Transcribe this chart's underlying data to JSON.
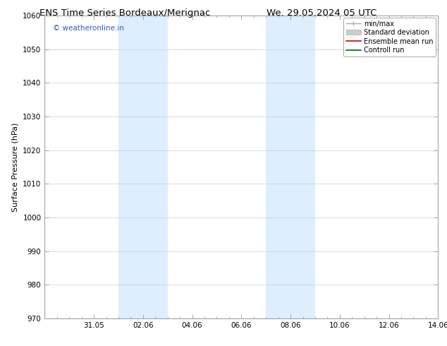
{
  "title_left": "ENS Time Series Bordeaux/Merignac",
  "title_right": "We. 29.05.2024 05 UTC",
  "ylabel": "Surface Pressure (hPa)",
  "ylim": [
    970,
    1060
  ],
  "yticks": [
    970,
    980,
    990,
    1000,
    1010,
    1020,
    1030,
    1040,
    1050,
    1060
  ],
  "xlim": [
    0.0,
    16.0
  ],
  "xtick_labels": [
    "31.05",
    "02.06",
    "04.06",
    "06.06",
    "08.06",
    "10.06",
    "12.06",
    "14.06"
  ],
  "xtick_positions": [
    2.0,
    4.0,
    6.0,
    8.0,
    10.0,
    12.0,
    14.0,
    16.0
  ],
  "shade_regions": [
    {
      "x_start": 3.0,
      "x_end": 5.0
    },
    {
      "x_start": 9.0,
      "x_end": 11.0
    }
  ],
  "shade_color": "#ddeeff",
  "background_color": "#ffffff",
  "watermark_text": "© weatheronline.in",
  "watermark_color": "#3355cc",
  "title_fontsize": 9.5,
  "tick_fontsize": 7.5,
  "ylabel_fontsize": 8,
  "watermark_fontsize": 7.5,
  "legend_fontsize": 7,
  "grid_color": "#cccccc",
  "grid_lw": 0.5,
  "spine_color": "#999999",
  "minor_tick_color": "#999999"
}
